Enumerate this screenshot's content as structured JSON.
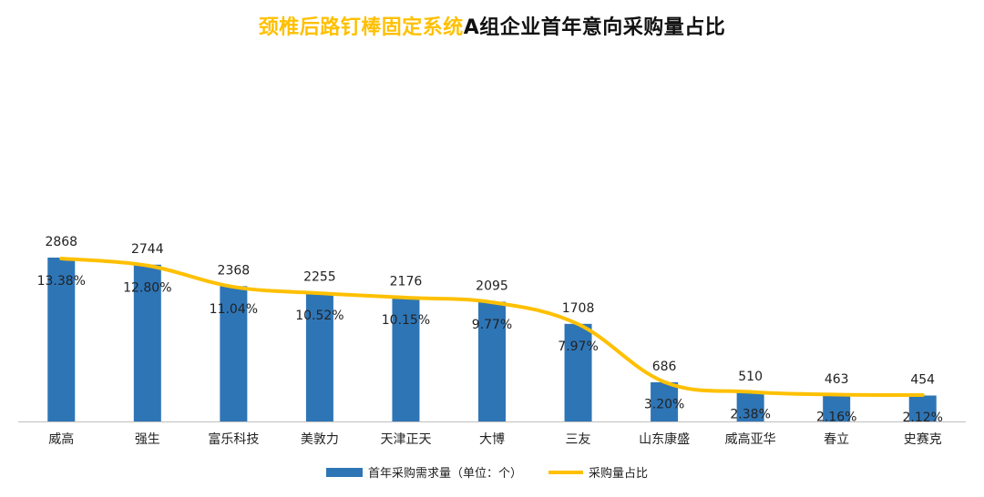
{
  "title": {
    "highlight": "颈椎后路钉棒固定系统",
    "rest": "A组企业首年意向采购量占比"
  },
  "colors": {
    "bar": "#2E75B6",
    "line": "#FFC000",
    "title_highlight": "#FFC000",
    "axis": "#BFBFBF"
  },
  "chart_data": {
    "type": "bar",
    "title": "颈椎后路钉棒固定系统A组企业首年意向采购量占比",
    "categories": [
      "威高",
      "强生",
      "富乐科技",
      "美敦力",
      "天津正天",
      "大博",
      "三友",
      "山东康盛",
      "威高亚华",
      "春立",
      "史赛克"
    ],
    "series": [
      {
        "name": "首年采购需求量（单位：个）",
        "type": "bar",
        "values": [
          2868,
          2744,
          2368,
          2255,
          2176,
          2095,
          1708,
          686,
          510,
          463,
          454
        ],
        "labels": [
          "2868",
          "2744",
          "2368",
          "2255",
          "2176",
          "2095",
          "1708",
          "686",
          "510",
          "463",
          "454"
        ]
      },
      {
        "name": "采购量占比",
        "type": "line",
        "values": [
          13.38,
          12.8,
          11.04,
          10.52,
          10.15,
          9.77,
          7.97,
          3.2,
          2.38,
          2.16,
          2.12
        ],
        "labels": [
          "13.38%",
          "12.80%",
          "11.04%",
          "10.52%",
          "10.15%",
          "9.77%",
          "7.97%",
          "3.20%",
          "2.38%",
          "2.16%",
          "2.12%"
        ]
      }
    ],
    "ylim": [
      0,
      2868
    ],
    "xlabel": "",
    "ylabel": "",
    "grid": false,
    "legend_position": "bottom"
  },
  "legend": {
    "bar_label": "首年采购需求量（单位：个）",
    "line_label": "采购量占比"
  }
}
